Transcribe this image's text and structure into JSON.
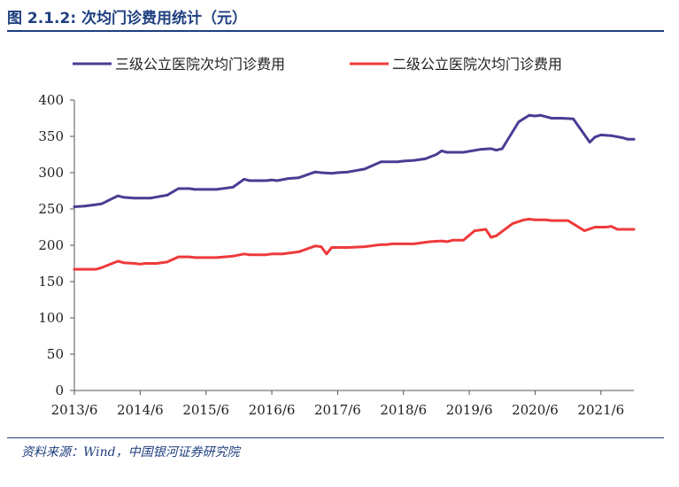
{
  "header": {
    "title": "图 2.1.2:  次均门诊费用统计（元）"
  },
  "footer": {
    "source": "资料来源：Wind，中国银河证券研究院"
  },
  "colors": {
    "accent": "#1f3f7f",
    "series1": "#4b3c93",
    "series2": "#ee3a3a",
    "axis": "#555555"
  },
  "chart_data": {
    "type": "line",
    "title": "次均门诊费用统计（元）",
    "xlabel": "",
    "ylabel": "",
    "ylim": [
      0,
      400
    ],
    "yticks": [
      0,
      50,
      100,
      150,
      200,
      250,
      300,
      350,
      400
    ],
    "xlim": [
      2013.42,
      2021.92
    ],
    "xticks": [
      {
        "x": 2013.42,
        "label": "2013/6"
      },
      {
        "x": 2014.42,
        "label": "2014/6"
      },
      {
        "x": 2015.42,
        "label": "2015/6"
      },
      {
        "x": 2016.42,
        "label": "2016/6"
      },
      {
        "x": 2017.42,
        "label": "2017/6"
      },
      {
        "x": 2018.42,
        "label": "2018/6"
      },
      {
        "x": 2019.42,
        "label": "2019/6"
      },
      {
        "x": 2020.42,
        "label": "2020/6"
      },
      {
        "x": 2021.42,
        "label": "2021/6"
      }
    ],
    "legend": "top",
    "grid": false,
    "series": [
      {
        "name": "三级公立医院次均门诊费用",
        "color": "#4b3c93",
        "points": [
          [
            2013.42,
            253
          ],
          [
            2013.58,
            254
          ],
          [
            2013.83,
            257
          ],
          [
            2014.08,
            268
          ],
          [
            2014.17,
            266
          ],
          [
            2014.33,
            265
          ],
          [
            2014.58,
            265
          ],
          [
            2014.83,
            269
          ],
          [
            2015.0,
            278
          ],
          [
            2015.17,
            278
          ],
          [
            2015.25,
            277
          ],
          [
            2015.58,
            277
          ],
          [
            2015.83,
            280
          ],
          [
            2016.0,
            291
          ],
          [
            2016.08,
            289
          ],
          [
            2016.33,
            289
          ],
          [
            2016.42,
            290
          ],
          [
            2016.5,
            289
          ],
          [
            2016.67,
            292
          ],
          [
            2016.83,
            293
          ],
          [
            2017.08,
            301
          ],
          [
            2017.17,
            300
          ],
          [
            2017.33,
            299
          ],
          [
            2017.42,
            300
          ],
          [
            2017.58,
            301
          ],
          [
            2017.83,
            305
          ],
          [
            2018.08,
            315
          ],
          [
            2018.33,
            315
          ],
          [
            2018.42,
            316
          ],
          [
            2018.58,
            317
          ],
          [
            2018.75,
            319
          ],
          [
            2018.92,
            325
          ],
          [
            2019.0,
            330
          ],
          [
            2019.08,
            328
          ],
          [
            2019.33,
            328
          ],
          [
            2019.58,
            332
          ],
          [
            2019.75,
            333
          ],
          [
            2019.83,
            331
          ],
          [
            2019.92,
            333
          ],
          [
            2020.17,
            370
          ],
          [
            2020.33,
            379
          ],
          [
            2020.42,
            378
          ],
          [
            2020.5,
            379
          ],
          [
            2020.67,
            375
          ],
          [
            2020.83,
            375
          ],
          [
            2021.0,
            374
          ],
          [
            2021.25,
            342
          ],
          [
            2021.33,
            349
          ],
          [
            2021.42,
            352
          ],
          [
            2021.58,
            351
          ],
          [
            2021.75,
            348
          ],
          [
            2021.83,
            346
          ],
          [
            2021.92,
            346
          ]
        ]
      },
      {
        "name": "二级公立医院次均门诊费用",
        "color": "#ee3a3a",
        "points": [
          [
            2013.42,
            167
          ],
          [
            2013.58,
            167
          ],
          [
            2013.75,
            167
          ],
          [
            2013.83,
            169
          ],
          [
            2014.08,
            178
          ],
          [
            2014.17,
            176
          ],
          [
            2014.33,
            175
          ],
          [
            2014.42,
            174
          ],
          [
            2014.5,
            175
          ],
          [
            2014.67,
            175
          ],
          [
            2014.83,
            177
          ],
          [
            2015.0,
            184
          ],
          [
            2015.17,
            184
          ],
          [
            2015.25,
            183
          ],
          [
            2015.58,
            183
          ],
          [
            2015.83,
            185
          ],
          [
            2016.0,
            188
          ],
          [
            2016.08,
            187
          ],
          [
            2016.33,
            187
          ],
          [
            2016.42,
            188
          ],
          [
            2016.58,
            188
          ],
          [
            2016.83,
            191
          ],
          [
            2017.08,
            199
          ],
          [
            2017.17,
            198
          ],
          [
            2017.25,
            188
          ],
          [
            2017.33,
            197
          ],
          [
            2017.58,
            197
          ],
          [
            2017.83,
            198
          ],
          [
            2018.08,
            201
          ],
          [
            2018.17,
            201
          ],
          [
            2018.25,
            202
          ],
          [
            2018.58,
            202
          ],
          [
            2018.83,
            205
          ],
          [
            2019.0,
            206
          ],
          [
            2019.08,
            205
          ],
          [
            2019.17,
            207
          ],
          [
            2019.33,
            207
          ],
          [
            2019.5,
            220
          ],
          [
            2019.67,
            222
          ],
          [
            2019.75,
            211
          ],
          [
            2019.83,
            213
          ],
          [
            2020.08,
            230
          ],
          [
            2020.25,
            235
          ],
          [
            2020.33,
            236
          ],
          [
            2020.42,
            235
          ],
          [
            2020.58,
            235
          ],
          [
            2020.67,
            234
          ],
          [
            2020.92,
            234
          ],
          [
            2021.17,
            220
          ],
          [
            2021.33,
            225
          ],
          [
            2021.5,
            225
          ],
          [
            2021.58,
            226
          ],
          [
            2021.67,
            222
          ],
          [
            2021.92,
            222
          ]
        ]
      }
    ]
  }
}
